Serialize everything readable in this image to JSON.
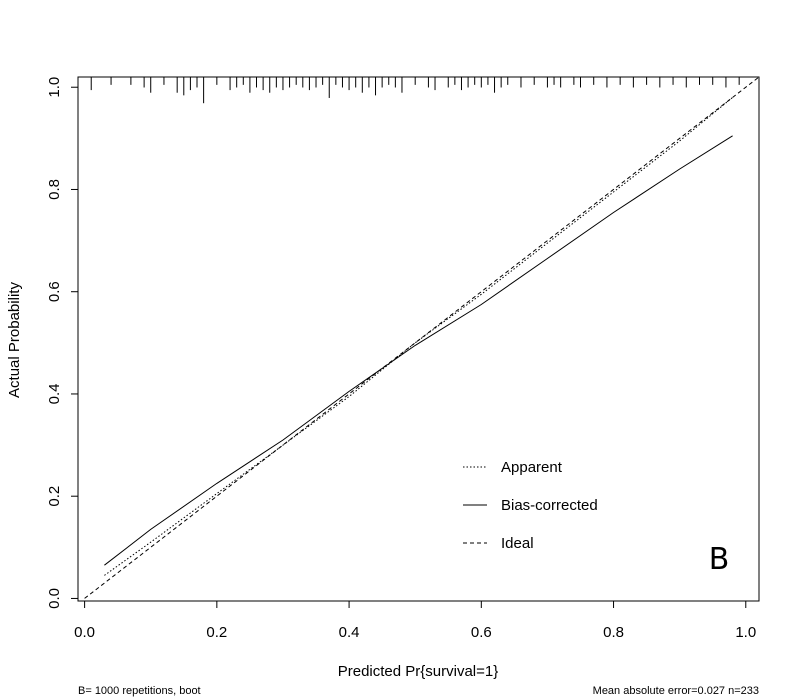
{
  "chart_data": {
    "type": "line",
    "xlabel": "Predicted Pr{survival=1}",
    "ylabel": "Actual Probability",
    "xlim": [
      -0.01,
      1.02
    ],
    "ylim": [
      -0.005,
      1.02
    ],
    "x_ticks": [
      0.0,
      0.2,
      0.4,
      0.6,
      0.8,
      1.0
    ],
    "x_tick_labels": [
      "0.0",
      "0.2",
      "0.4",
      "0.6",
      "0.8",
      "1.0"
    ],
    "y_ticks": [
      0.0,
      0.2,
      0.4,
      0.6,
      0.8,
      1.0
    ],
    "y_tick_labels": [
      "0.0",
      "0.2",
      "0.4",
      "0.6",
      "0.8",
      "1.0"
    ],
    "grid": false,
    "legend_position": "bottom-right",
    "series": [
      {
        "name": "Apparent",
        "line_style": "dotted",
        "x": [
          0.03,
          0.1,
          0.2,
          0.3,
          0.4,
          0.5,
          0.6,
          0.7,
          0.8,
          0.9,
          0.98
        ],
        "y": [
          0.045,
          0.11,
          0.205,
          0.3,
          0.395,
          0.5,
          0.595,
          0.695,
          0.795,
          0.895,
          0.98
        ]
      },
      {
        "name": "Bias-corrected",
        "line_style": "solid",
        "x": [
          0.03,
          0.1,
          0.2,
          0.3,
          0.4,
          0.5,
          0.6,
          0.7,
          0.8,
          0.9,
          0.98
        ],
        "y": [
          0.065,
          0.135,
          0.225,
          0.31,
          0.405,
          0.495,
          0.575,
          0.665,
          0.755,
          0.84,
          0.905
        ]
      },
      {
        "name": "Ideal",
        "line_style": "dashed",
        "x": [
          0.0,
          1.02
        ],
        "y": [
          0.0,
          1.02
        ]
      }
    ],
    "rug_x": [
      0.01,
      0.04,
      0.07,
      0.09,
      0.1,
      0.12,
      0.14,
      0.15,
      0.16,
      0.17,
      0.18,
      0.2,
      0.22,
      0.23,
      0.24,
      0.25,
      0.26,
      0.27,
      0.28,
      0.29,
      0.3,
      0.31,
      0.32,
      0.33,
      0.34,
      0.35,
      0.36,
      0.37,
      0.38,
      0.39,
      0.4,
      0.41,
      0.42,
      0.43,
      0.44,
      0.45,
      0.46,
      0.47,
      0.48,
      0.5,
      0.52,
      0.53,
      0.55,
      0.56,
      0.57,
      0.58,
      0.59,
      0.6,
      0.61,
      0.62,
      0.63,
      0.64,
      0.66,
      0.68,
      0.7,
      0.71,
      0.72,
      0.74,
      0.75,
      0.77,
      0.79,
      0.81,
      0.83,
      0.85,
      0.87,
      0.89,
      0.91,
      0.93,
      0.95,
      0.97,
      0.99
    ],
    "rug_lengths": [
      0.025,
      0.015,
      0.015,
      0.02,
      0.03,
      0.015,
      0.03,
      0.035,
      0.025,
      0.02,
      0.05,
      0.015,
      0.025,
      0.02,
      0.015,
      0.03,
      0.02,
      0.025,
      0.03,
      0.02,
      0.025,
      0.02,
      0.015,
      0.02,
      0.025,
      0.02,
      0.015,
      0.04,
      0.015,
      0.02,
      0.025,
      0.02,
      0.03,
      0.02,
      0.035,
      0.02,
      0.015,
      0.02,
      0.03,
      0.015,
      0.02,
      0.025,
      0.02,
      0.015,
      0.025,
      0.02,
      0.015,
      0.02,
      0.015,
      0.03,
      0.02,
      0.015,
      0.02,
      0.015,
      0.02,
      0.015,
      0.02,
      0.015,
      0.02,
      0.015,
      0.02,
      0.015,
      0.02,
      0.015,
      0.02,
      0.015,
      0.02,
      0.015,
      0.015,
      0.02,
      0.015
    ],
    "panel_label": "B",
    "footnote_left": "B= 1000 repetitions, boot",
    "footnote_right": "Mean absolute error=0.027 n=233"
  }
}
